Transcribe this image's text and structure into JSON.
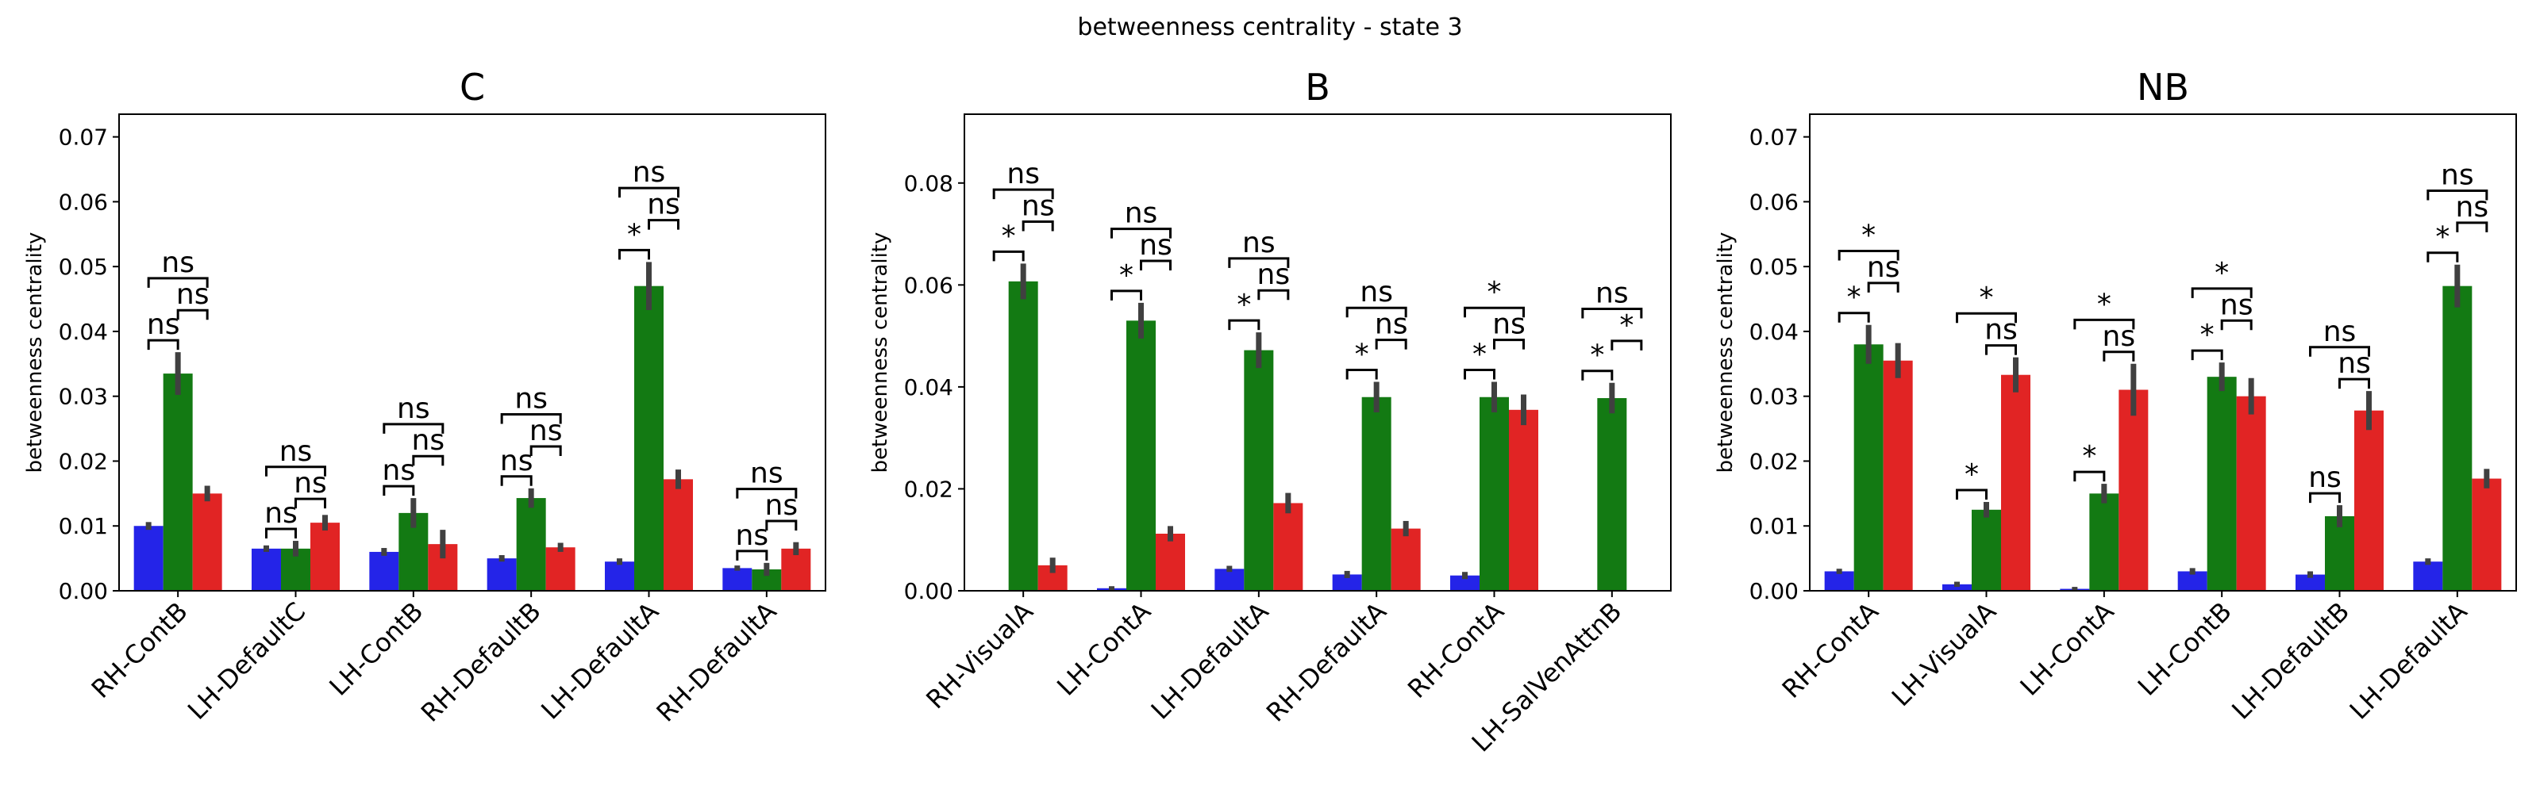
{
  "figure": {
    "suptitle": "betweenness centrality - state 3"
  },
  "colors": {
    "blue": "#2424e8",
    "green": "#137a13",
    "red": "#e12424",
    "error": "#404040"
  },
  "chart_data": [
    {
      "type": "bar",
      "title": "C",
      "ylabel": "betweenness centrality",
      "ylim": [
        0,
        0.0735
      ],
      "yticks": [
        "0.00",
        "0.01",
        "0.02",
        "0.03",
        "0.04",
        "0.05",
        "0.06",
        "0.07"
      ],
      "categories": [
        "RH-ContB",
        "LH-DefaultC",
        "LH-ContB",
        "RH-DefaultB",
        "LH-DefaultA",
        "RH-DefaultA"
      ],
      "series": [
        {
          "values": [
            0.01,
            0.0065,
            0.006,
            0.005,
            0.0045,
            0.0035
          ],
          "errors": [
            0.0006,
            0.0005,
            0.0006,
            0.0005,
            0.0005,
            0.0004
          ]
        },
        {
          "values": [
            0.0335,
            0.0065,
            0.012,
            0.0143,
            0.047,
            0.0033
          ],
          "errors": [
            0.0033,
            0.0012,
            0.0023,
            0.0015,
            0.0037,
            0.001
          ]
        },
        {
          "values": [
            0.015,
            0.0105,
            0.0072,
            0.0067,
            0.0172,
            0.0065
          ],
          "errors": [
            0.0012,
            0.0012,
            0.0022,
            0.0007,
            0.0015,
            0.001
          ]
        }
      ],
      "annotations": [
        {
          "pair": "0-1",
          "labels": [
            "ns",
            "ns",
            "ns",
            "ns",
            "*",
            "ns"
          ]
        },
        {
          "pair": "1-2",
          "labels": [
            "ns",
            "ns",
            "ns",
            "ns",
            "ns",
            "ns"
          ]
        },
        {
          "pair": "0-2",
          "labels": [
            "ns",
            "ns",
            "ns",
            "ns",
            "ns",
            "ns"
          ]
        }
      ]
    },
    {
      "type": "bar",
      "title": "B",
      "ylabel": "betweenness centrality",
      "ylim": [
        0,
        0.0935
      ],
      "yticks": [
        "0.00",
        "0.02",
        "0.04",
        "0.06",
        "0.08"
      ],
      "categories": [
        "RH-VisualA",
        "LH-ContA",
        "LH-DefaultA",
        "RH-DefaultA",
        "RH-ContA",
        "LH-SalVenAttnB"
      ],
      "series": [
        {
          "values": [
            0.0,
            0.0005,
            0.0043,
            0.0032,
            0.003,
            0.0
          ],
          "errors": [
            0.0,
            0.0004,
            0.0006,
            0.0007,
            0.0007,
            0.0
          ]
        },
        {
          "values": [
            0.0607,
            0.053,
            0.0472,
            0.038,
            0.038,
            0.0378
          ],
          "errors": [
            0.0035,
            0.0035,
            0.0035,
            0.003,
            0.003,
            0.003
          ]
        },
        {
          "values": [
            0.005,
            0.0112,
            0.0172,
            0.0122,
            0.0355,
            0.0
          ],
          "errors": [
            0.0015,
            0.0015,
            0.002,
            0.0015,
            0.003,
            0.0
          ]
        }
      ],
      "annotations": [
        {
          "pair": "0-1",
          "labels": [
            "*",
            "*",
            "*",
            "*",
            "*",
            "*"
          ]
        },
        {
          "pair": "1-2",
          "labels": [
            "ns",
            "ns",
            "ns",
            "ns",
            "ns",
            "*"
          ]
        },
        {
          "pair": "0-2",
          "labels": [
            "ns",
            "ns",
            "ns",
            "ns",
            "*",
            "ns"
          ]
        }
      ]
    },
    {
      "type": "bar",
      "title": "NB",
      "ylabel": "betweenness centrality",
      "ylim": [
        0,
        0.0735
      ],
      "yticks": [
        "0.00",
        "0.01",
        "0.02",
        "0.03",
        "0.04",
        "0.05",
        "0.06",
        "0.07"
      ],
      "categories": [
        "RH-ContA",
        "LH-VisualA",
        "LH-ContA",
        "LH-ContB",
        "LH-DefaultB",
        "LH-DefaultA"
      ],
      "series": [
        {
          "values": [
            0.003,
            0.001,
            0.0003,
            0.003,
            0.0025,
            0.0045
          ],
          "errors": [
            0.0004,
            0.0004,
            0.0003,
            0.0005,
            0.0005,
            0.0005
          ]
        },
        {
          "values": [
            0.038,
            0.0125,
            0.015,
            0.033,
            0.0115,
            0.047
          ],
          "errors": [
            0.003,
            0.0012,
            0.0015,
            0.0022,
            0.0017,
            0.0033
          ]
        },
        {
          "values": [
            0.0355,
            0.0333,
            0.031,
            0.03,
            0.0278,
            0.0173
          ],
          "errors": [
            0.0027,
            0.0027,
            0.004,
            0.0028,
            0.003,
            0.0015
          ]
        }
      ],
      "annotations": [
        {
          "pair": "0-1",
          "labels": [
            "*",
            "*",
            "*",
            "*",
            "ns",
            "*"
          ]
        },
        {
          "pair": "1-2",
          "labels": [
            "ns",
            "ns",
            "ns",
            "ns",
            "ns",
            "ns"
          ]
        },
        {
          "pair": "0-2",
          "labels": [
            "*",
            "*",
            "*",
            "*",
            "ns",
            "ns"
          ]
        }
      ]
    }
  ]
}
